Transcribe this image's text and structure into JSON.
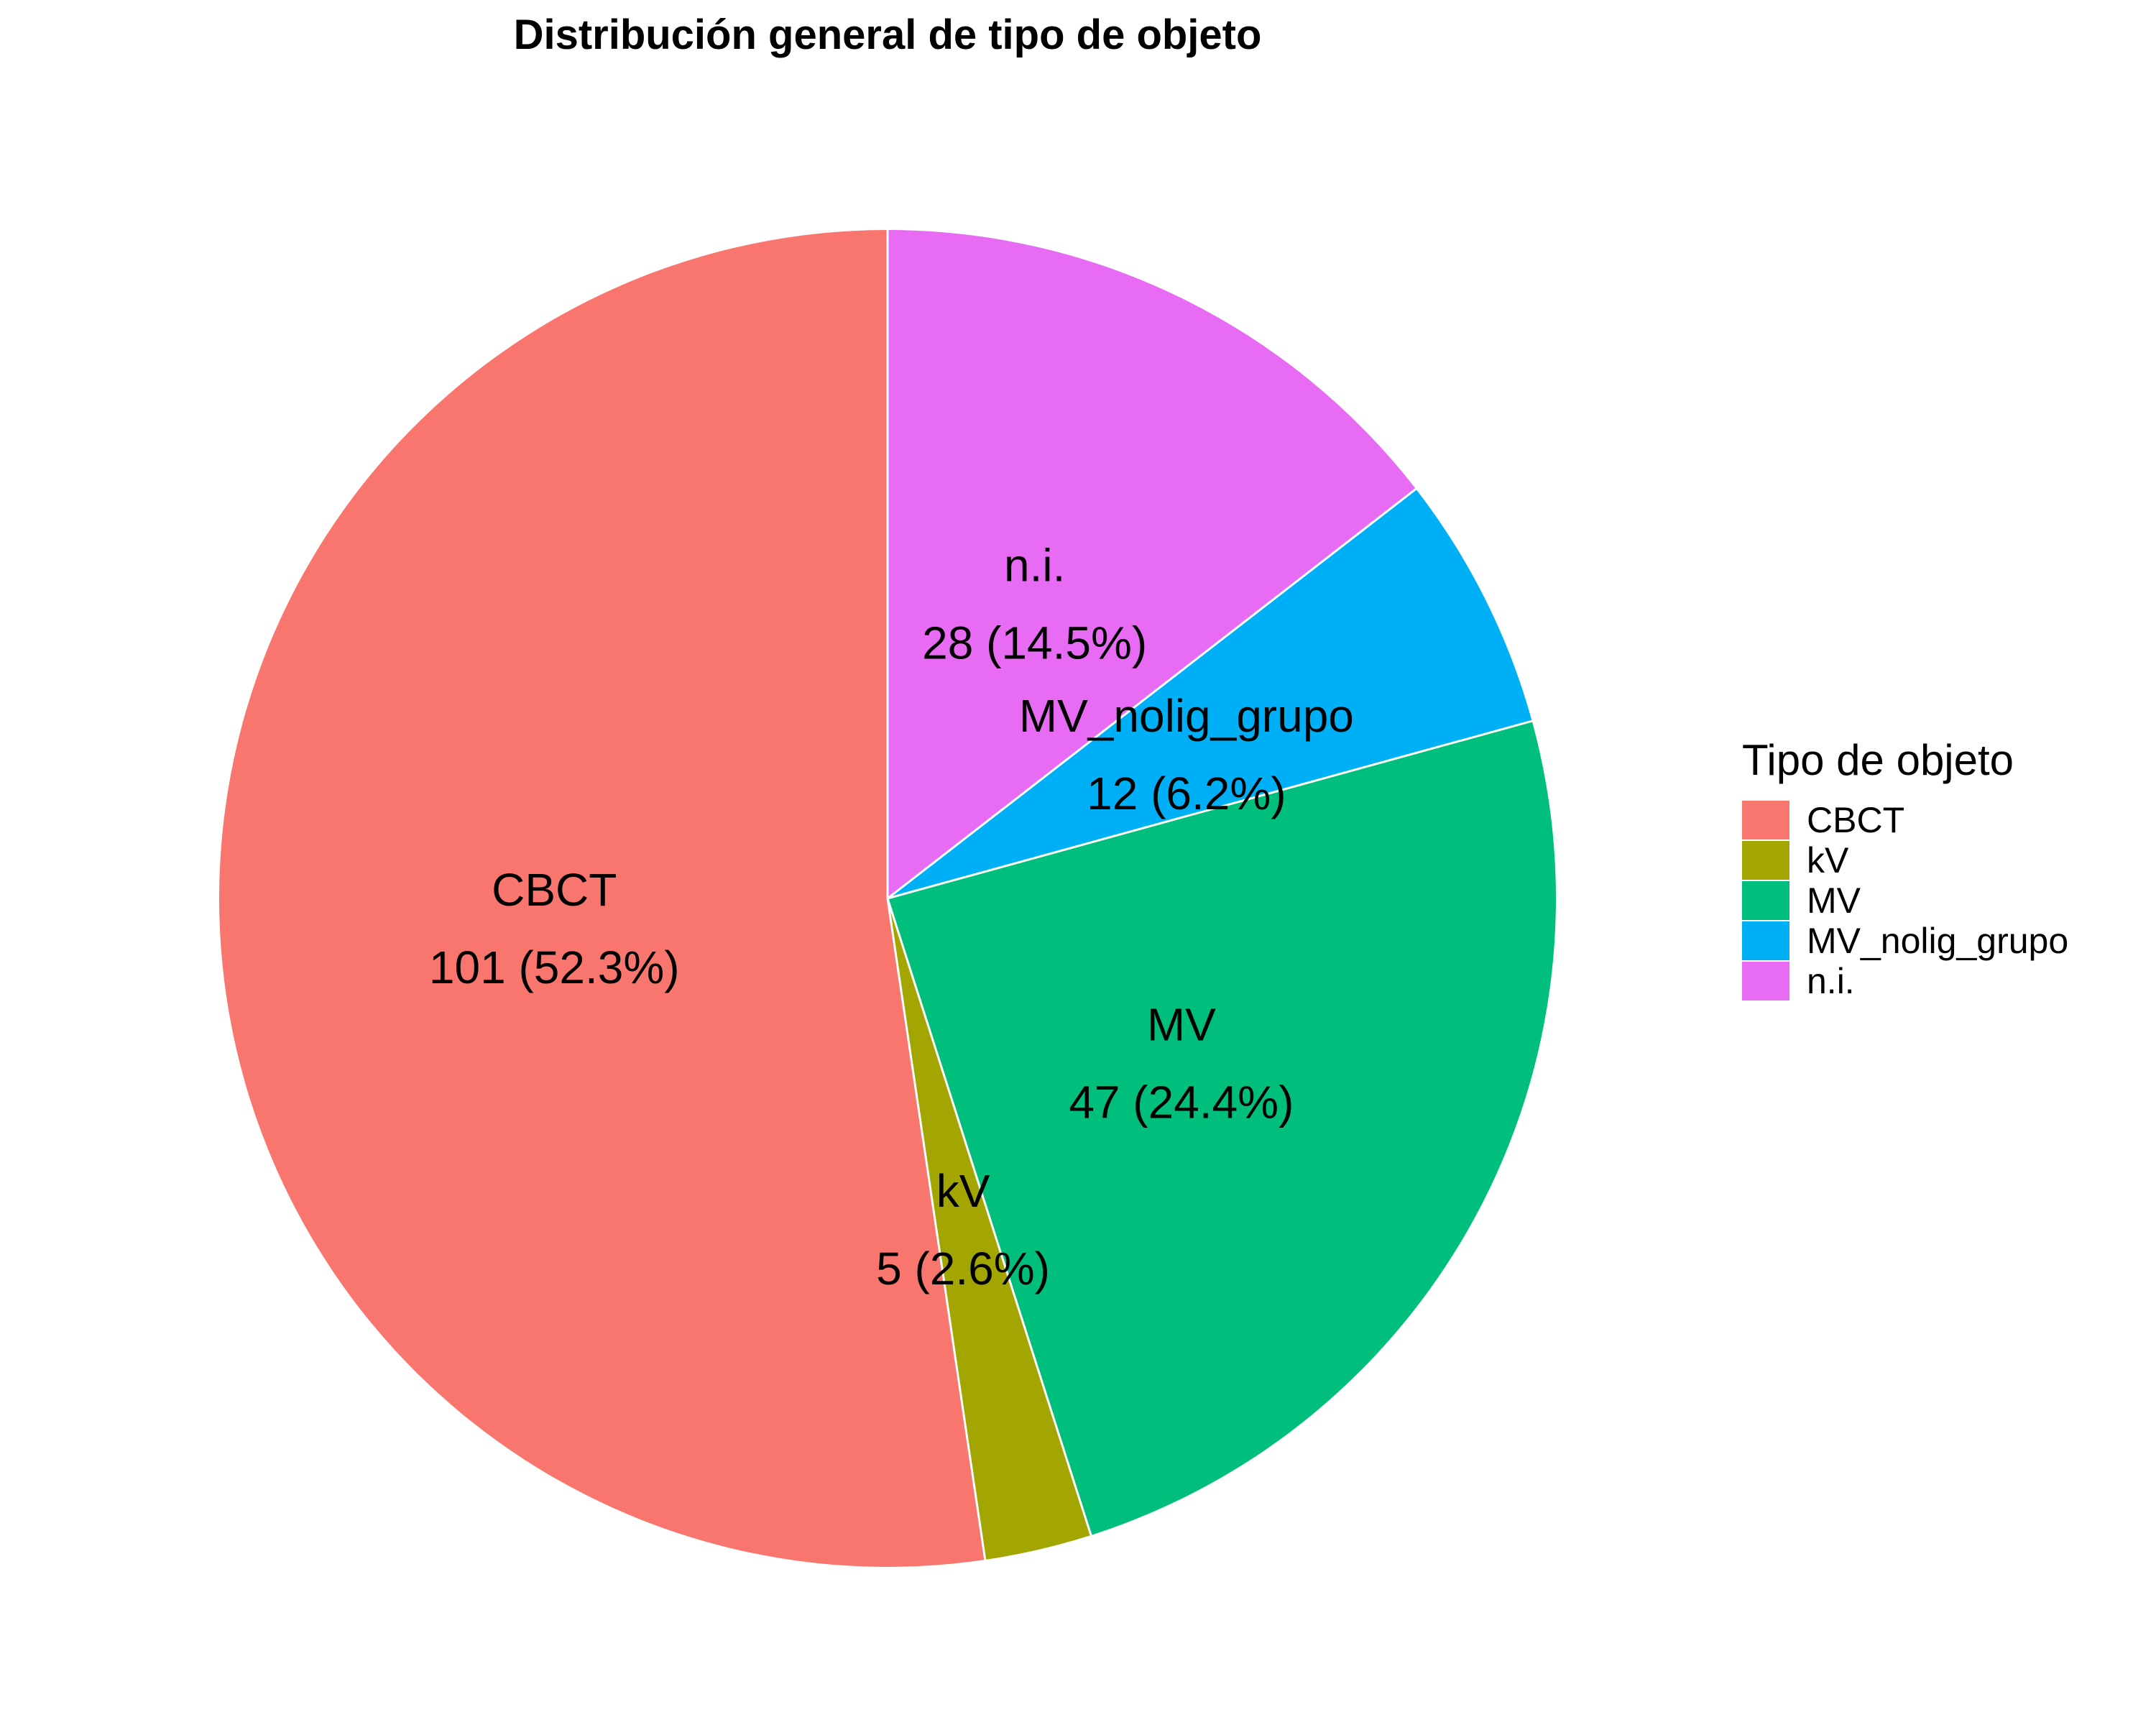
{
  "chart_data": {
    "type": "pie",
    "title": "Distribución general de tipo de objeto",
    "legend_title": "Tipo de objeto",
    "legend_position": "right",
    "start_angle": "12 o'clock",
    "direction": "counterclockwise",
    "slices": [
      {
        "category": "CBCT",
        "value": 101,
        "label": "101 (52.3%)",
        "color": "#F8766D"
      },
      {
        "category": "kV",
        "value": 5,
        "label": "5 (2.6%)",
        "color": "#A3A500"
      },
      {
        "category": "MV",
        "value": 47,
        "label": "47 (24.4%)",
        "color": "#00BF7D"
      },
      {
        "category": "MV_nolig_grupo",
        "value": 12,
        "label": "12 (6.2%)",
        "color": "#00B0F6"
      },
      {
        "category": "n.i.",
        "value": 28,
        "label": "28 (14.5%)",
        "color": "#E76BF3"
      }
    ]
  }
}
